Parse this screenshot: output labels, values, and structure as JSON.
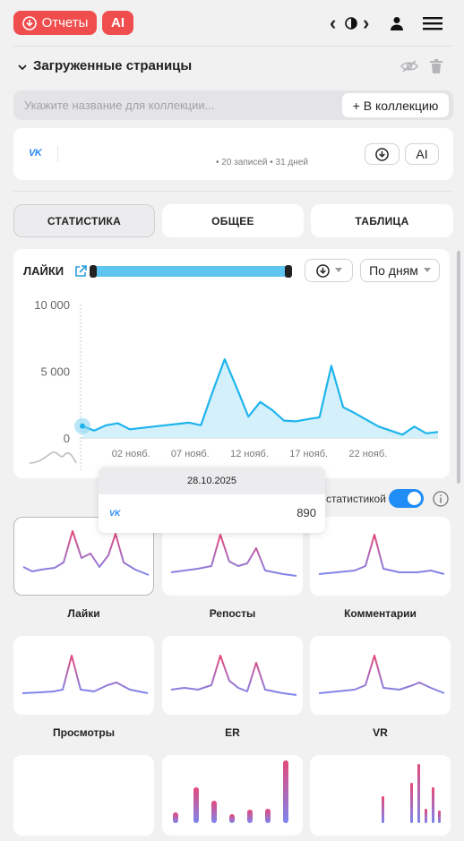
{
  "header": {
    "reports_label": "Отчеты",
    "ai_label": "AI",
    "nav_prev": "‹",
    "nav_next": "›"
  },
  "section": {
    "title": "Загруженные страницы"
  },
  "collection": {
    "placeholder": "Укажите название для коллекции...",
    "add_label": "+ В коллекцию"
  },
  "source": {
    "network": "VK",
    "meta": "• 20 записей • 31 дней",
    "ai_label": "AI"
  },
  "tabs": [
    {
      "label": "СТАТИСТИКА",
      "active": true
    },
    {
      "label": "ОБЩЕЕ",
      "active": false
    },
    {
      "label": "ТАБЛИЦА",
      "active": false
    }
  ],
  "chart_card": {
    "title": "ЛАЙКИ",
    "period_select": "По дням"
  },
  "tooltip": {
    "date": "28.10.2025",
    "network": "VK",
    "value": "890"
  },
  "compare": {
    "label_fragment": "статистикой",
    "toggle_on": true
  },
  "mini_charts": [
    {
      "label": "Лайки",
      "selected": true
    },
    {
      "label": "Репосты",
      "selected": false
    },
    {
      "label": "Комментарии",
      "selected": false
    },
    {
      "label": "Просмотры",
      "selected": false
    },
    {
      "label": "ER",
      "selected": false
    },
    {
      "label": "VR",
      "selected": false
    },
    {
      "label": "",
      "selected": false
    },
    {
      "label": "",
      "selected": false
    },
    {
      "label": "",
      "selected": false
    }
  ],
  "colors": {
    "accent_red": "#f04e4e",
    "chart_line": "#1eb4ec",
    "chart_fill": "#d4f0fb",
    "slider": "#5ec4f0",
    "toggle": "#1f8df5",
    "gradient_top": "#e5487a",
    "gradient_bottom": "#7e86ee"
  },
  "chart_data": {
    "type": "area",
    "title": "ЛАЙКИ",
    "x_tick_labels": [
      "02 нояб.",
      "07 нояб.",
      "12 нояб.",
      "17 нояб.",
      "22 нояб."
    ],
    "y_tick_labels": [
      "10 000",
      "5 000",
      "0"
    ],
    "ylim": [
      0,
      10000
    ],
    "x": [
      "28.10",
      "29.10",
      "30.10",
      "31.10",
      "01.11",
      "02.11",
      "03.11",
      "04.11",
      "05.11",
      "06.11",
      "07.11",
      "08.11",
      "09.11",
      "10.11",
      "11.11",
      "12.11",
      "13.11",
      "14.11",
      "15.11",
      "16.11",
      "17.11",
      "18.11",
      "19.11",
      "20.11",
      "21.11",
      "22.11",
      "23.11",
      "24.11",
      "25.11",
      "26.11",
      "27.11"
    ],
    "series": [
      {
        "values": [
          890,
          550,
          950,
          1100,
          650,
          750,
          850,
          950,
          1050,
          1150,
          950,
          3500,
          5900,
          3800,
          1600,
          2700,
          2100,
          1300,
          1250,
          1400,
          1550,
          5400,
          2300,
          1850,
          1350,
          850,
          550,
          250,
          850,
          350,
          450
        ]
      }
    ],
    "grid": false,
    "legend": "none"
  }
}
